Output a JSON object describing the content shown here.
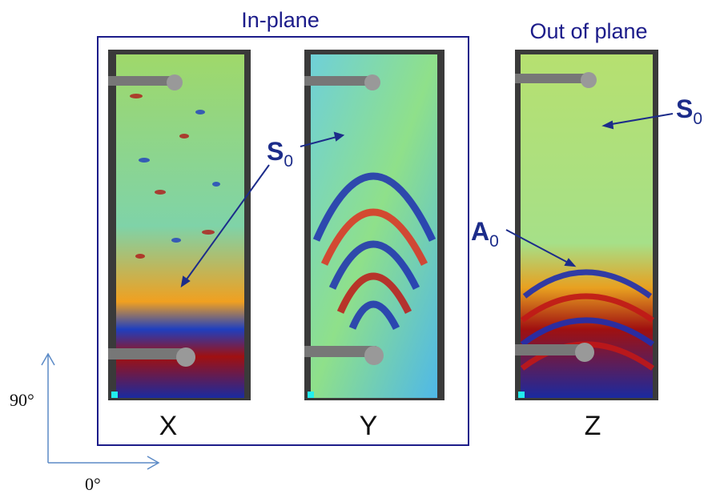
{
  "headings": {
    "in_plane": "In-plane",
    "out_of_plane": "Out of plane"
  },
  "panels": [
    "X",
    "Y",
    "Z"
  ],
  "annotations": [
    {
      "symbol": "S",
      "subscript": "0"
    },
    {
      "symbol": "S",
      "subscript": "0"
    },
    {
      "symbol": "A",
      "subscript": "0"
    }
  ],
  "axes": {
    "vertical": "90°",
    "horizontal": "0°"
  }
}
